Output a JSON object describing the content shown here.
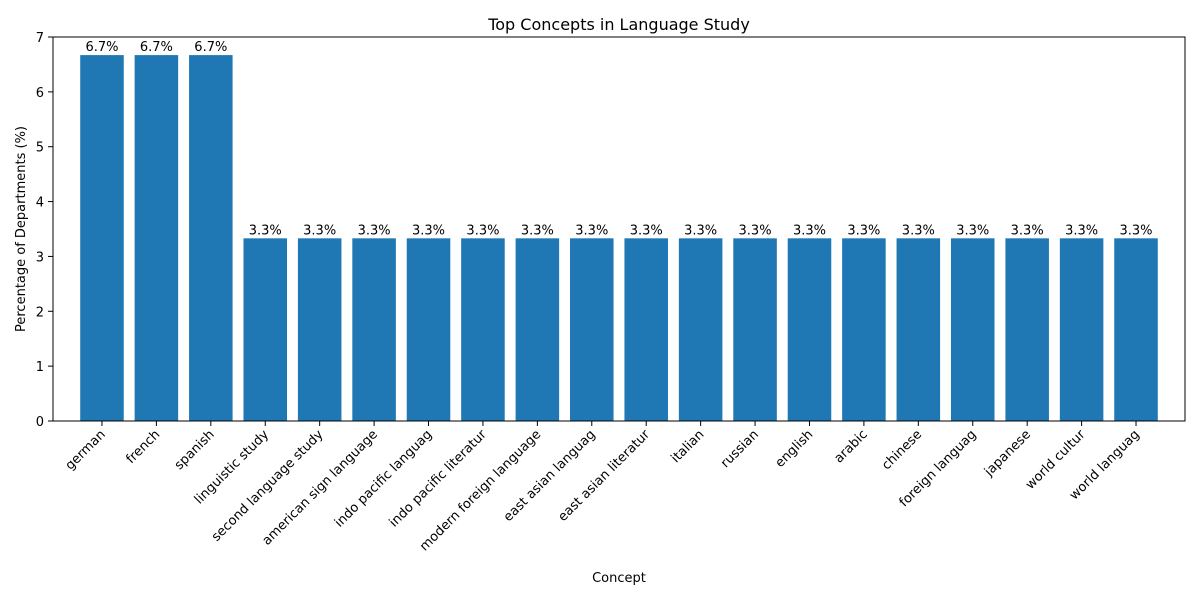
{
  "chart_data": {
    "type": "bar",
    "title": "Top Concepts in Language Study",
    "xlabel": "Concept",
    "ylabel": "Percentage of Departments (%)",
    "ylim": [
      0,
      7
    ],
    "yticks": [
      0,
      1,
      2,
      3,
      4,
      5,
      6,
      7
    ],
    "grid": false,
    "bar_color": "#1f77b4",
    "categories": [
      "german",
      "french",
      "spanish",
      "linguistic study",
      "second language study",
      "american sign language",
      "indo pacific languag",
      "indo pacific literatur",
      "modern foreign language",
      "east asian languag",
      "east asian literatur",
      "italian",
      "russian",
      "english",
      "arabic",
      "chinese",
      "foreign languag",
      "japanese",
      "world cultur",
      "world languag"
    ],
    "values": [
      6.67,
      6.67,
      6.67,
      3.33,
      3.33,
      3.33,
      3.33,
      3.33,
      3.33,
      3.33,
      3.33,
      3.33,
      3.33,
      3.33,
      3.33,
      3.33,
      3.33,
      3.33,
      3.33,
      3.33
    ],
    "data_labels": [
      "6.7%",
      "6.7%",
      "6.7%",
      "3.3%",
      "3.3%",
      "3.3%",
      "3.3%",
      "3.3%",
      "3.3%",
      "3.3%",
      "3.3%",
      "3.3%",
      "3.3%",
      "3.3%",
      "3.3%",
      "3.3%",
      "3.3%",
      "3.3%",
      "3.3%",
      "3.3%"
    ]
  }
}
